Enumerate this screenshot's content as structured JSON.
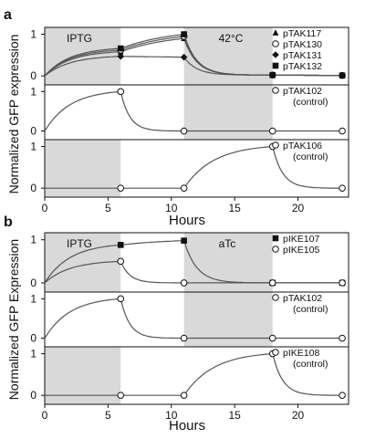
{
  "figure": {
    "ylabel": "Normalized GFP expression",
    "ylabel_b": "Normalized GFP Expression",
    "xlabel": "Hours"
  },
  "chart_data": [
    {
      "type": "line",
      "panel_label": "a",
      "subplot": 1,
      "shaded_regions": [
        {
          "from": 0,
          "to": 6,
          "label": "IPTG"
        },
        {
          "from": 11,
          "to": 18,
          "label": "42°C"
        }
      ],
      "xlim": [
        0,
        24
      ],
      "ylim": [
        -0.15,
        1.1
      ],
      "yticks": [
        0,
        1
      ],
      "series": [
        {
          "name": "pTAK117",
          "marker": "triangle",
          "x": [
            6,
            11,
            18,
            23.5
          ],
          "y": [
            0.58,
            0.9,
            0.02,
            0.01
          ]
        },
        {
          "name": "pTAK130",
          "marker": "circle-open",
          "x": [
            6,
            11,
            18,
            23.5
          ],
          "y": [
            0.62,
            0.95,
            0.02,
            0.01
          ]
        },
        {
          "name": "pTAK131",
          "marker": "diamond",
          "x": [
            6,
            11,
            18,
            23.5
          ],
          "y": [
            0.47,
            0.45,
            0.02,
            0.01
          ]
        },
        {
          "name": "pTAK132",
          "marker": "square",
          "x": [
            6,
            11,
            18,
            23.5
          ],
          "y": [
            0.66,
            1.0,
            0.02,
            0.01
          ]
        }
      ]
    },
    {
      "type": "line",
      "panel_label": "a",
      "subplot": 2,
      "shaded_regions": [
        {
          "from": 11,
          "to": 18
        }
      ],
      "xlim": [
        0,
        24
      ],
      "ylim": [
        -0.15,
        1.1
      ],
      "yticks": [
        0,
        1
      ],
      "series": [
        {
          "name": "pTAK102\n(control)",
          "marker": "circle-open",
          "x": [
            6,
            11,
            18,
            23.5
          ],
          "y": [
            1.0,
            0.0,
            0.0,
            0.0
          ]
        }
      ]
    },
    {
      "type": "line",
      "panel_label": "a",
      "subplot": 3,
      "shaded_regions": [
        {
          "from": 0,
          "to": 6
        }
      ],
      "xlim": [
        0,
        24
      ],
      "ylim": [
        -0.15,
        1.1
      ],
      "yticks": [
        0,
        1
      ],
      "xticks": [
        0,
        5,
        10,
        15,
        20
      ],
      "series": [
        {
          "name": "pTAK106\n(control)",
          "marker": "circle-open",
          "x": [
            6,
            11,
            18,
            23.5
          ],
          "y": [
            0.0,
            0.0,
            1.0,
            0.0
          ]
        }
      ]
    },
    {
      "type": "line",
      "panel_label": "b",
      "subplot": 1,
      "shaded_regions": [
        {
          "from": 0,
          "to": 6,
          "label": "IPTG"
        },
        {
          "from": 11,
          "to": 18,
          "label": "aTc"
        }
      ],
      "xlim": [
        0,
        24
      ],
      "ylim": [
        -0.15,
        1.1
      ],
      "yticks": [
        0,
        1
      ],
      "series": [
        {
          "name": "pIKE107",
          "marker": "square",
          "x": [
            6,
            11,
            18,
            23.5
          ],
          "y": [
            0.88,
            0.98,
            0.0,
            0.0
          ]
        },
        {
          "name": "pIKE105",
          "marker": "circle-open",
          "x": [
            6,
            11,
            18,
            23.5
          ],
          "y": [
            0.5,
            0.0,
            0.0,
            0.0
          ]
        }
      ]
    },
    {
      "type": "line",
      "panel_label": "b",
      "subplot": 2,
      "shaded_regions": [
        {
          "from": 11,
          "to": 18
        }
      ],
      "xlim": [
        0,
        24
      ],
      "ylim": [
        -0.15,
        1.1
      ],
      "yticks": [
        0,
        1
      ],
      "series": [
        {
          "name": "pTAK102\n(control)",
          "marker": "circle-open",
          "x": [
            6,
            11,
            18,
            23.5
          ],
          "y": [
            1.0,
            0.0,
            0.0,
            0.0
          ]
        }
      ]
    },
    {
      "type": "line",
      "panel_label": "b",
      "subplot": 3,
      "shaded_regions": [
        {
          "from": 0,
          "to": 6
        }
      ],
      "xlim": [
        0,
        24
      ],
      "ylim": [
        -0.15,
        1.1
      ],
      "yticks": [
        0,
        1
      ],
      "xticks": [
        0,
        5,
        10,
        15,
        20
      ],
      "series": [
        {
          "name": "pIKE108\n(control)",
          "marker": "circle-open",
          "x": [
            6,
            11,
            18,
            23.5
          ],
          "y": [
            0.0,
            0.0,
            1.0,
            0.0
          ]
        }
      ]
    }
  ]
}
